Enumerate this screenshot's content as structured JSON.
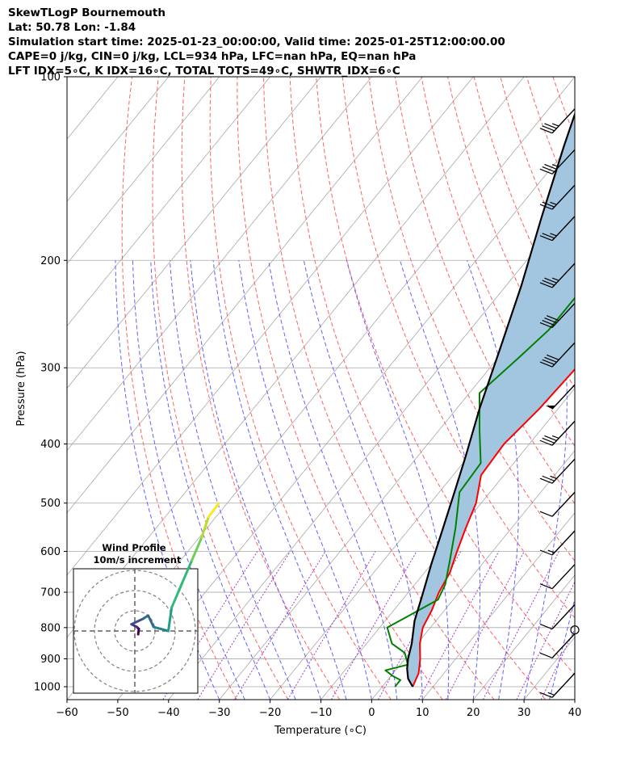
{
  "header": {
    "line1": "SkewTLogP Bournemouth",
    "line2": "Lat: 50.78   Lon: -1.84",
    "line3": "Simulation start time: 2025-01-23_00:00:00, Valid time: 2025-01-25T12:00:00.00",
    "line4": "CAPE=0 j/kg, CIN=0 j/kg, LCL=934 hPa, LFC=nan hPa, EQ=nan hPa",
    "line5": "LFT IDX=5∘C, K IDX=16∘C, TOTAL TOTS=49∘C, SHWTR_IDX=6∘C"
  },
  "chart_data": {
    "type": "line",
    "xlabel": "Temperature (∘C)",
    "ylabel": "Pressure (hPa)",
    "xlim": [
      -60,
      40
    ],
    "ylim": [
      1050,
      100
    ],
    "y_scale": "log",
    "x_ticks": [
      "−60",
      "−50",
      "−40",
      "−30",
      "−20",
      "−10",
      "0",
      "10",
      "20",
      "30",
      "40"
    ],
    "y_ticks": [
      "100",
      "200",
      "300",
      "400",
      "500",
      "600",
      "700",
      "800",
      "900",
      "1000"
    ],
    "grid": true,
    "colors": {
      "temperature": "#ff0000",
      "dewpoint": "#008000",
      "parcel": "#000000",
      "shade": "#a3c6e0",
      "dry_adiabats": "#ff6060",
      "moist_adiabats": "#6060ff",
      "mixing_ratio": "#9b40c8",
      "isotherms": "#a8a8a8"
    },
    "series": [
      {
        "key": "temperature",
        "points": [
          [
            6.0,
            1000
          ],
          [
            5.0,
            950
          ],
          [
            3.0,
            900
          ],
          [
            0.5,
            850
          ],
          [
            -1.5,
            800
          ],
          [
            -2.5,
            750
          ],
          [
            -4.0,
            700
          ],
          [
            -5.0,
            650
          ],
          [
            -7.0,
            600
          ],
          [
            -9.0,
            550
          ],
          [
            -11.0,
            500
          ],
          [
            -14.5,
            450
          ],
          [
            -15.0,
            400
          ],
          [
            -13.7,
            350
          ],
          [
            -13.0,
            300
          ],
          [
            -12.0,
            280
          ],
          [
            -10.5,
            250
          ],
          [
            -9.0,
            225
          ],
          [
            -6.5,
            200
          ],
          [
            -3.5,
            180
          ],
          [
            0.5,
            165
          ],
          [
            4.0,
            150
          ],
          [
            7.0,
            130
          ],
          [
            9.5,
            115
          ],
          [
            13.0,
            100
          ]
        ]
      },
      {
        "key": "dewpoint",
        "points": [
          [
            2.5,
            1000
          ],
          [
            2.5,
            975
          ],
          [
            0.3,
            960
          ],
          [
            -2.0,
            940
          ],
          [
            1.5,
            920
          ],
          [
            -1.0,
            880
          ],
          [
            -5.0,
            850
          ],
          [
            -8.5,
            800
          ],
          [
            -3.0,
            720
          ],
          [
            -4.0,
            680
          ],
          [
            -7.0,
            620
          ],
          [
            -11.0,
            550
          ],
          [
            -16.0,
            480
          ],
          [
            -16.5,
            430
          ],
          [
            -22.0,
            380
          ],
          [
            -28.0,
            330
          ],
          [
            -26.0,
            290
          ],
          [
            -24.5,
            260
          ],
          [
            -24.5,
            210
          ],
          [
            -24.0,
            175
          ],
          [
            -20.0,
            155
          ],
          [
            -13.0,
            130
          ],
          [
            -7.0,
            110
          ],
          [
            -3.0,
            100
          ]
        ]
      },
      {
        "key": "parcel",
        "points": [
          [
            6.0,
            1000
          ],
          [
            3.8,
            970
          ],
          [
            2.0,
            934
          ],
          [
            0.6,
            900
          ],
          [
            -1.1,
            850
          ],
          [
            -4.2,
            780
          ],
          [
            -7.1,
            700
          ],
          [
            -10.0,
            630
          ],
          [
            -13.0,
            560
          ],
          [
            -17.0,
            480
          ],
          [
            -20.5,
            420
          ],
          [
            -25.5,
            350
          ],
          [
            -31.0,
            280
          ],
          [
            -37.0,
            220
          ],
          [
            -44.0,
            170
          ],
          [
            -51.0,
            130
          ],
          [
            -57.5,
            100
          ]
        ]
      }
    ],
    "wind_barbs": [
      {
        "p": 120,
        "speed_kt": 35
      },
      {
        "p": 140,
        "speed_kt": 35
      },
      {
        "p": 160,
        "speed_kt": 25
      },
      {
        "p": 180,
        "speed_kt": 25
      },
      {
        "p": 215,
        "speed_kt": 35
      },
      {
        "p": 250,
        "speed_kt": 40
      },
      {
        "p": 290,
        "speed_kt": 40
      },
      {
        "p": 340,
        "speed_kt": 50
      },
      {
        "p": 390,
        "speed_kt": 35
      },
      {
        "p": 450,
        "speed_kt": 25
      },
      {
        "p": 510,
        "speed_kt": 10
      },
      {
        "p": 590,
        "speed_kt": 15
      },
      {
        "p": 670,
        "speed_kt": 10
      },
      {
        "p": 780,
        "speed_kt": 10
      },
      {
        "p": 870,
        "speed_kt": 10
      },
      {
        "p": 1010,
        "speed_kt": 15
      }
    ],
    "calm_marker_p": 807,
    "inset": {
      "title": "Wind Profile",
      "subtitle": "10m/s increment",
      "hodograph": [
        [
          0.5,
          -0.5
        ],
        [
          0.6,
          0.3
        ],
        [
          0.3,
          0.6
        ],
        [
          -0.5,
          1.0
        ],
        [
          1.2,
          1.8
        ],
        [
          2.0,
          2.3
        ],
        [
          2.8,
          0.6
        ],
        [
          5.0,
          0.0
        ],
        [
          5.5,
          3.5
        ],
        [
          7.0,
          7.0
        ],
        [
          8.5,
          10.5
        ],
        [
          10.0,
          14.0
        ],
        [
          11.0,
          17.0
        ],
        [
          12.5,
          19.0
        ]
      ]
    }
  }
}
